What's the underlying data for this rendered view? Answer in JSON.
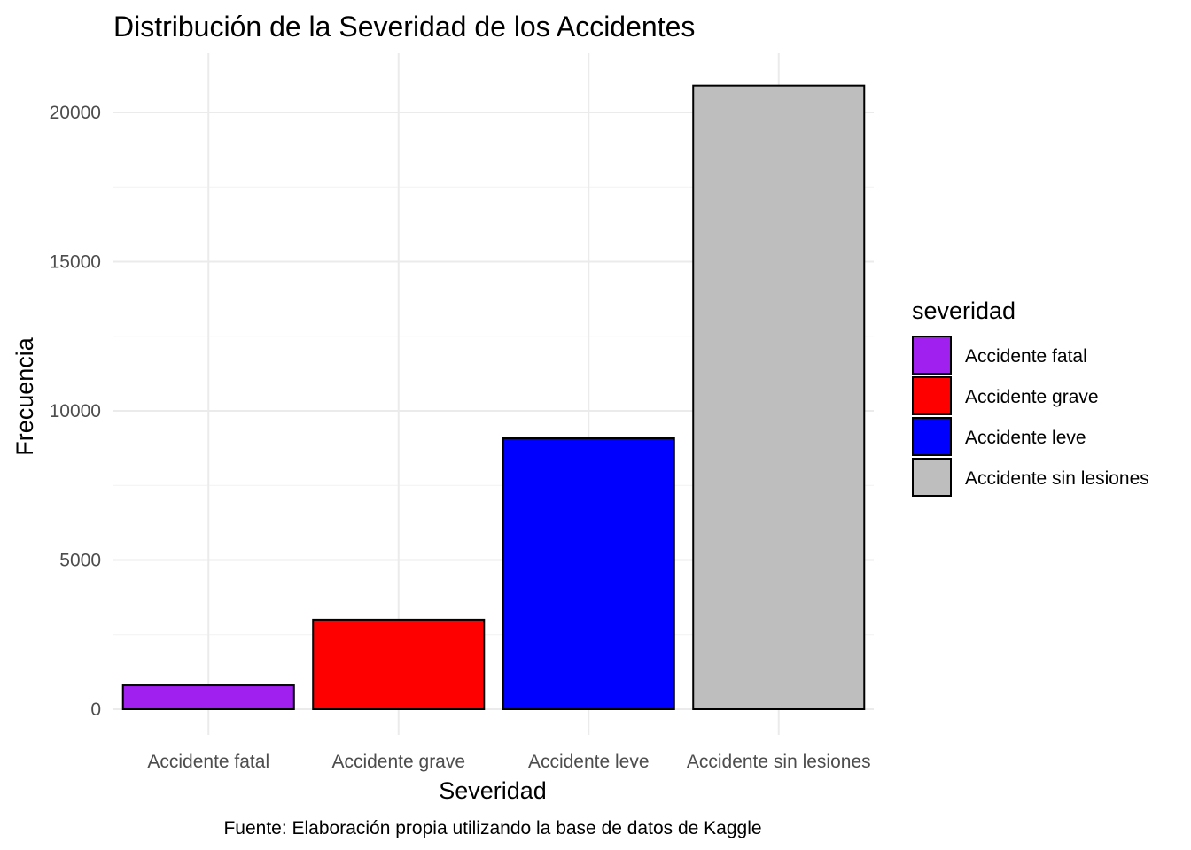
{
  "chart_data": {
    "type": "bar",
    "title": "Distribución de la Severidad de los Accidentes",
    "xlabel": "Severidad",
    "ylabel": "Frecuencia",
    "caption": "Fuente: Elaboración propia utilizando la base de datos de Kaggle",
    "categories": [
      "Accidente fatal",
      "Accidente grave",
      "Accidente leve",
      "Accidente sin lesiones"
    ],
    "values": [
      800,
      3000,
      9080,
      20900
    ],
    "colors": [
      "#A020F0",
      "#FF0000",
      "#0000FF",
      "#BEBEBE"
    ],
    "ylim": [
      0,
      22000
    ],
    "yticks": [
      0,
      5000,
      10000,
      15000,
      20000
    ],
    "grid": true,
    "legend": {
      "title": "severidad",
      "placement": "right",
      "items": [
        "Accidente fatal",
        "Accidente grave",
        "Accidente leve",
        "Accidente sin lesiones"
      ]
    }
  }
}
